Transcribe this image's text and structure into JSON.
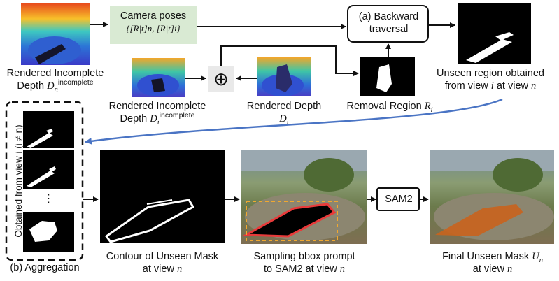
{
  "labels": {
    "rendered_incomplete_n": "Rendered Incomplete",
    "rendered_incomplete_n_depth": "Depth",
    "camera_poses": "Camera poses",
    "camera_poses_formula": "{[R|t]n, [R|t]i}",
    "backward_traversal_1": "(a) Backward",
    "backward_traversal_2": "traversal",
    "oplus": "⊕",
    "rendered_incomplete_i_1": "Rendered Incomplete",
    "rendered_incomplete_i_2": "Depth",
    "rendered_depth_1": "Rendered Depth",
    "rendered_depth_2": "D",
    "removal_region": "Removal Region",
    "unseen_region_1": "Unseen region obtained",
    "unseen_region_2": "from view",
    "unseen_region_at": "at view",
    "aggregation_vertical": "Obtained from view i (i ≠ n)",
    "ellipsis": "⋮",
    "aggregation": "(b) Aggregation",
    "contour_1": "Contour of Unseen Mask",
    "contour_2": "at view",
    "sampling_1": "Sampling bbox prompt",
    "sampling_2": "to SAM2 at view",
    "sam2": "SAM2",
    "final_1": "Final Unseen Mask",
    "final_2": "at view"
  },
  "math": {
    "n": "n",
    "i": "i",
    "D": "D",
    "R": "R",
    "U": "U",
    "incomplete": "incomplete"
  },
  "colors": {
    "camera_box": "#d9ead3",
    "curve_arrow": "#4a74c4",
    "sam_mask": "#c8641e",
    "bbox_dashed": "#f0a830",
    "mask_outline": "#e83a3a"
  }
}
